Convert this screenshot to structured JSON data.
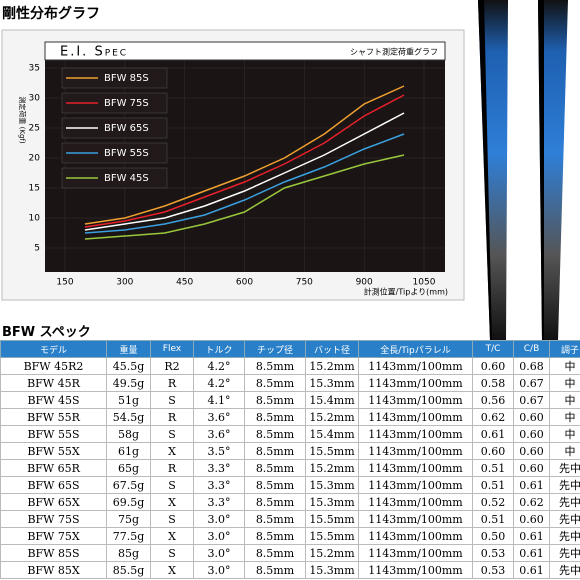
{
  "heading": "剛性分布グラフ",
  "chart_data": {
    "type": "line",
    "title": "E.I. Spec",
    "subtitle": "シャフト測定荷重グラフ",
    "y_label": "測定荷重 (Kgf)",
    "x_label": "計測位置/Tipより(mm)",
    "x": [
      200,
      300,
      400,
      500,
      600,
      700,
      800,
      900,
      1000
    ],
    "series": [
      {
        "name": "BFW 85S",
        "color": "#f0a030",
        "values": [
          9,
          10,
          12,
          14.5,
          17,
          20,
          24,
          29,
          32
        ]
      },
      {
        "name": "BFW 75S",
        "color": "#e8202a",
        "values": [
          8.5,
          9.5,
          11,
          13.5,
          16,
          19,
          22.5,
          27,
          30.5
        ]
      },
      {
        "name": "BFW 65S",
        "color": "#ffffff",
        "values": [
          8,
          9,
          10,
          12,
          14.5,
          17.5,
          20.5,
          24,
          27.5
        ]
      },
      {
        "name": "BFW 55S",
        "color": "#3aa0e0",
        "values": [
          7.5,
          8,
          9,
          10.5,
          13,
          16,
          18.5,
          21.5,
          24
        ]
      },
      {
        "name": "BFW 45S",
        "color": "#9ac83c",
        "values": [
          6.5,
          7,
          7.5,
          9,
          11,
          15,
          17,
          19,
          20.5
        ]
      }
    ],
    "xlim": [
      150,
      1050
    ],
    "xticks": [
      150,
      300,
      450,
      600,
      750,
      900,
      1050
    ],
    "ylim": [
      5,
      35
    ],
    "yticks": [
      5,
      10,
      15,
      20,
      25,
      30,
      35
    ],
    "grid": true
  },
  "table": {
    "title": "BFW スペック",
    "header": [
      "モデル",
      "重量",
      "Flex",
      "トルク",
      "チップ径",
      "バット径",
      "全長/Tipパラレル",
      "T/C",
      "C/B",
      "調子"
    ],
    "rows": [
      [
        "BFW 45R2",
        "45.5g",
        "R2",
        "4.2°",
        "8.5mm",
        "15.2mm",
        "1143mm/100mm",
        "0.60",
        "0.68",
        "中"
      ],
      [
        "BFW 45R",
        "49.5g",
        "R",
        "4.2°",
        "8.5mm",
        "15.3mm",
        "1143mm/100mm",
        "0.58",
        "0.67",
        "中"
      ],
      [
        "BFW 45S",
        "51g",
        "S",
        "4.1°",
        "8.5mm",
        "15.4mm",
        "1143mm/100mm",
        "0.56",
        "0.67",
        "中"
      ],
      [
        "BFW 55R",
        "54.5g",
        "R",
        "3.6°",
        "8.5mm",
        "15.2mm",
        "1143mm/100mm",
        "0.62",
        "0.60",
        "中"
      ],
      [
        "BFW 55S",
        "58g",
        "S",
        "3.6°",
        "8.5mm",
        "15.4mm",
        "1143mm/100mm",
        "0.61",
        "0.60",
        "中"
      ],
      [
        "BFW 55X",
        "61g",
        "X",
        "3.5°",
        "8.5mm",
        "15.5mm",
        "1143mm/100mm",
        "0.60",
        "0.60",
        "中"
      ],
      [
        "BFW 65R",
        "65g",
        "R",
        "3.3°",
        "8.5mm",
        "15.2mm",
        "1143mm/100mm",
        "0.51",
        "0.60",
        "先中"
      ],
      [
        "BFW 65S",
        "67.5g",
        "S",
        "3.3°",
        "8.5mm",
        "15.3mm",
        "1143mm/100mm",
        "0.51",
        "0.61",
        "先中"
      ],
      [
        "BFW 65X",
        "69.5g",
        "X",
        "3.3°",
        "8.5mm",
        "15.3mm",
        "1143mm/100mm",
        "0.52",
        "0.62",
        "先中"
      ],
      [
        "BFW 75S",
        "75g",
        "S",
        "3.0°",
        "8.5mm",
        "15.5mm",
        "1143mm/100mm",
        "0.51",
        "0.60",
        "先中"
      ],
      [
        "BFW 75X",
        "77.5g",
        "X",
        "3.0°",
        "8.5mm",
        "15.5mm",
        "1143mm/100mm",
        "0.50",
        "0.61",
        "先中"
      ],
      [
        "BFW 85S",
        "85g",
        "S",
        "3.0°",
        "8.5mm",
        "15.2mm",
        "1143mm/100mm",
        "0.53",
        "0.61",
        "先中"
      ],
      [
        "BFW 85X",
        "85.5g",
        "X",
        "3.0°",
        "8.5mm",
        "15.3mm",
        "1143mm/100mm",
        "0.53",
        "0.61",
        "先中"
      ]
    ]
  }
}
